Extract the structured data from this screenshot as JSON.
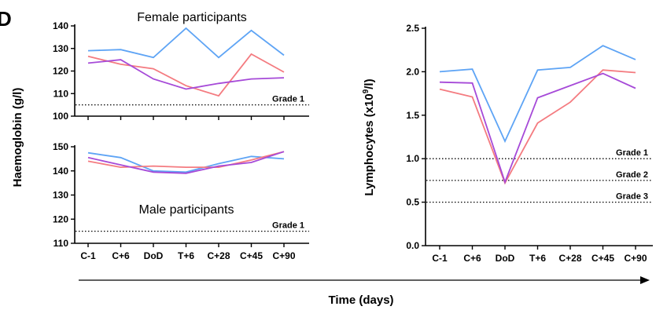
{
  "panel_letter": "D",
  "x_axis_label": "Time (days)",
  "chart_data": [
    {
      "type": "line",
      "title": "Female participants",
      "ylabel": "Haemoglobin (g/l)",
      "ylim": [
        100,
        140
      ],
      "yticks": [
        100,
        110,
        120,
        130,
        140
      ],
      "categories": [
        "C-1",
        "C+6",
        "DoD",
        "T+6",
        "C+28",
        "C+45",
        "C+90"
      ],
      "show_x_tick_labels": false,
      "reference_lines": [
        {
          "label": "Grade 1",
          "value": 105
        }
      ],
      "series": [
        {
          "color": "#5ea4f5",
          "values": [
            129,
            129.5,
            126,
            139,
            126,
            138,
            127
          ]
        },
        {
          "color": "#f47b80",
          "values": [
            126.5,
            123,
            121,
            113.5,
            109,
            127.5,
            119.5
          ]
        },
        {
          "color": "#a64ad8",
          "values": [
            123.5,
            125,
            116.5,
            112,
            114.5,
            116.5,
            117
          ]
        }
      ]
    },
    {
      "type": "line",
      "title": "Male participants",
      "ylim": [
        110,
        150
      ],
      "yticks": [
        110,
        120,
        130,
        140,
        150
      ],
      "categories": [
        "C-1",
        "C+6",
        "DoD",
        "T+6",
        "C+28",
        "C+45",
        "C+90"
      ],
      "show_x_tick_labels": true,
      "reference_lines": [
        {
          "label": "Grade 1",
          "value": 115
        }
      ],
      "series": [
        {
          "color": "#5ea4f5",
          "values": [
            147.5,
            145.5,
            140,
            139.5,
            143,
            146,
            145
          ]
        },
        {
          "color": "#f47b80",
          "values": [
            144,
            141.5,
            142,
            141.5,
            141.5,
            144.5,
            148
          ]
        },
        {
          "color": "#a64ad8",
          "values": [
            145.5,
            142.5,
            139.5,
            139,
            142,
            143.5,
            148
          ]
        }
      ]
    },
    {
      "type": "line",
      "ylabel_parts": [
        "Lymphocytes (x10",
        "9",
        "/l)"
      ],
      "ylim": [
        0,
        2.5
      ],
      "yticks": [
        "0.0",
        "0.5",
        "1.0",
        "1.5",
        "2.0",
        "2.5"
      ],
      "categories": [
        "C-1",
        "C+6",
        "DoD",
        "T+6",
        "C+28",
        "C+45",
        "C+90"
      ],
      "show_x_tick_labels": true,
      "reference_lines": [
        {
          "label": "Grade 1",
          "value": 1.0
        },
        {
          "label": "Grade 2",
          "value": 0.75
        },
        {
          "label": "Grade 3",
          "value": 0.5
        }
      ],
      "series": [
        {
          "color": "#5ea4f5",
          "values": [
            2.0,
            2.03,
            1.2,
            2.02,
            2.05,
            2.3,
            2.14
          ]
        },
        {
          "color": "#f47b80",
          "values": [
            1.8,
            1.71,
            0.72,
            1.41,
            1.65,
            2.02,
            1.99
          ]
        },
        {
          "color": "#a64ad8",
          "values": [
            1.88,
            1.87,
            0.73,
            1.7,
            1.84,
            1.98,
            1.81
          ]
        }
      ]
    }
  ]
}
